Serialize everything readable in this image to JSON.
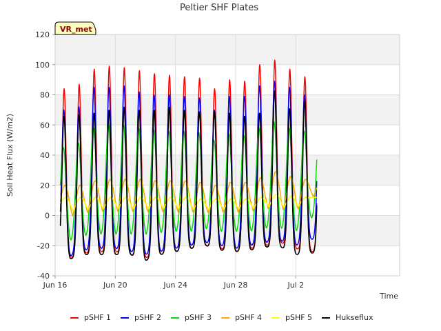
{
  "chart_data": {
    "type": "line",
    "title": "Peltier SHF Plates",
    "xlabel": "Time",
    "ylabel": "Soil Heat Flux (W/m2)",
    "badge": "VR_met",
    "xlim": [
      0,
      22.9
    ],
    "ylim": [
      -40,
      120
    ],
    "yticks": [
      -40,
      -20,
      0,
      20,
      40,
      60,
      80,
      100,
      120
    ],
    "xticks": [
      {
        "day": 0,
        "label": "Jun 16"
      },
      {
        "day": 4,
        "label": "Jun 20"
      },
      {
        "day": 8,
        "label": "Jun 24"
      },
      {
        "day": 12,
        "label": "Jun 28"
      },
      {
        "day": 16,
        "label": "Jul 2"
      }
    ],
    "x_start_day": 0.35,
    "x_end_day": 17.4,
    "samples_per_day": 48,
    "series": [
      {
        "name": "pSHF 1",
        "color": "#ff0000",
        "mins": [
          -20,
          -28,
          -25,
          -24,
          -24,
          -26,
          -28,
          -26,
          -24,
          -22,
          -20,
          -22,
          -24,
          -22,
          -20,
          -18,
          -22,
          -24
        ],
        "maxs": [
          84,
          87,
          97,
          99,
          98,
          96,
          94,
          93,
          92,
          91,
          84,
          90,
          89,
          100,
          103,
          97,
          92
        ],
        "peak_phase": 0.6,
        "width": 0.13
      },
      {
        "name": "pSHF 2",
        "color": "#0000ff",
        "mins": [
          -18,
          -27,
          -23,
          -22,
          -22,
          -24,
          -26,
          -24,
          -22,
          -20,
          -18,
          -20,
          -22,
          -20,
          -18,
          -17,
          -20,
          -16
        ],
        "maxs": [
          70,
          72,
          85,
          85,
          86,
          82,
          80,
          80,
          79,
          78,
          70,
          79,
          79,
          86,
          89,
          85,
          80
        ],
        "peak_phase": 0.58,
        "width": 0.14
      },
      {
        "name": "pSHF 3",
        "color": "#00dd00",
        "mins": [
          -5,
          -18,
          -15,
          -14,
          -14,
          -14,
          -14,
          -13,
          -12,
          -12,
          -10,
          -12,
          -12,
          -12,
          -10,
          -10,
          -12,
          -3
        ],
        "maxs": [
          45,
          48,
          58,
          60,
          60,
          58,
          57,
          56,
          56,
          55,
          50,
          54,
          53,
          58,
          62,
          58,
          56
        ],
        "peak_phase": 0.55,
        "width": 0.18
      },
      {
        "name": "pSHF 4",
        "color": "#ffa500",
        "mins": [
          5,
          -5,
          -3,
          -2,
          -2,
          -2,
          -2,
          -2,
          -2,
          -2,
          -2,
          -2,
          -2,
          -2,
          -1,
          -1,
          -2,
          10
        ],
        "maxs": [
          20,
          20,
          23,
          24,
          24,
          24,
          23,
          23,
          23,
          22,
          20,
          22,
          22,
          25,
          29,
          26,
          24
        ],
        "peak_phase": 0.66,
        "width": 0.27
      },
      {
        "name": "pSHF 5",
        "color": "#ffff00",
        "mins": [
          7,
          0,
          1,
          2,
          2,
          2,
          2,
          2,
          2,
          2,
          2,
          2,
          2,
          2,
          3,
          3,
          2,
          12
        ],
        "maxs": [
          12,
          12,
          12,
          12,
          12,
          12,
          12,
          12,
          12,
          11,
          11,
          11,
          11,
          12,
          14,
          13,
          12
        ],
        "peak_phase": 0.7,
        "width": 0.3
      },
      {
        "name": "Hukseflux",
        "color": "#000000",
        "mins": [
          -20,
          -29,
          -26,
          -26,
          -26,
          -26,
          -30,
          -26,
          -24,
          -22,
          -20,
          -23,
          -24,
          -23,
          -21,
          -21,
          -26,
          -25
        ],
        "maxs": [
          66,
          67,
          68,
          70,
          72,
          70,
          70,
          72,
          70,
          69,
          69,
          68,
          66,
          68,
          83,
          71,
          76
        ],
        "peak_phase": 0.59,
        "width": 0.13
      }
    ]
  }
}
